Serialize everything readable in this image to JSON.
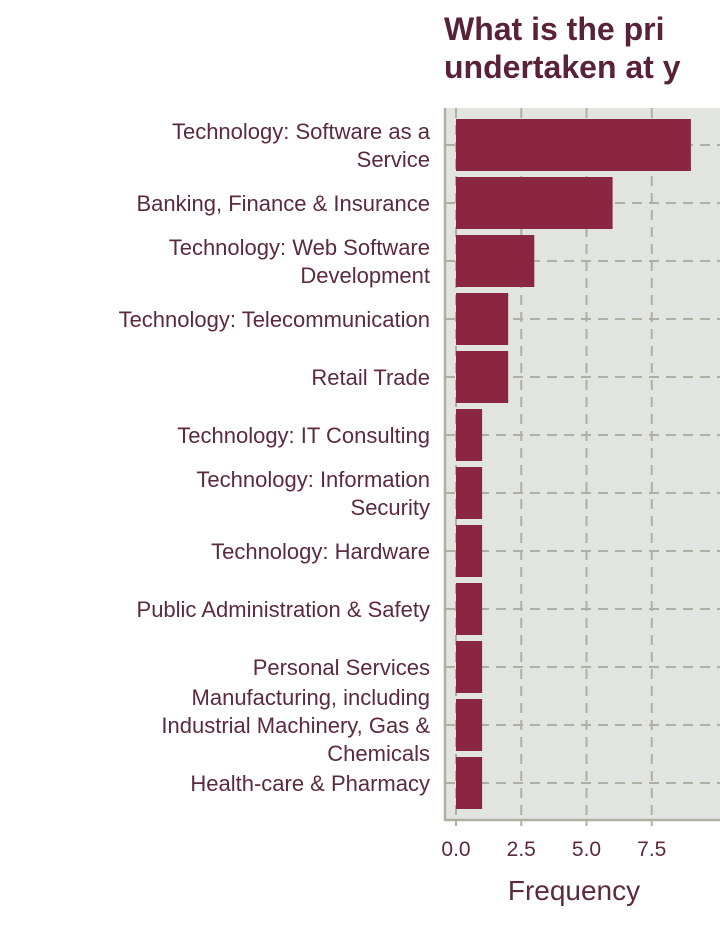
{
  "colors": {
    "bar": "#8a2642",
    "panel": "#e2e4df",
    "grid": "#aeb0a4",
    "axis_line": "#aeb0a4",
    "text": "#5b2a3f",
    "title": "#5a2237"
  },
  "chart_data": {
    "type": "bar",
    "orientation": "horizontal",
    "title": [
      "What is the pri",
      "undertaken at y"
    ],
    "xlabel": "Frequency",
    "ylabel": "",
    "xlim": [
      0,
      9
    ],
    "x_ticks": [
      0,
      2.5,
      5,
      7.5
    ],
    "x_tick_labels": [
      "0.0",
      "2.5",
      "5.0",
      "7.5"
    ],
    "grid": true,
    "categories": [
      [
        "Technology: Software as a",
        "Service"
      ],
      [
        "Banking, Finance & Insurance"
      ],
      [
        "Technology: Web Software",
        "Development"
      ],
      [
        "Technology: Telecommunication"
      ],
      [
        "Retail Trade"
      ],
      [
        "Technology: IT Consulting"
      ],
      [
        "Technology: Information",
        "Security"
      ],
      [
        "Technology: Hardware"
      ],
      [
        "Public Administration & Safety"
      ],
      [
        "Personal Services"
      ],
      [
        "Manufacturing, including",
        "Industrial Machinery, Gas &",
        "Chemicals"
      ],
      [
        "Health-care & Pharmacy"
      ]
    ],
    "values": [
      9,
      6,
      3,
      2,
      2,
      1,
      1,
      1,
      1,
      1,
      1,
      1
    ]
  }
}
